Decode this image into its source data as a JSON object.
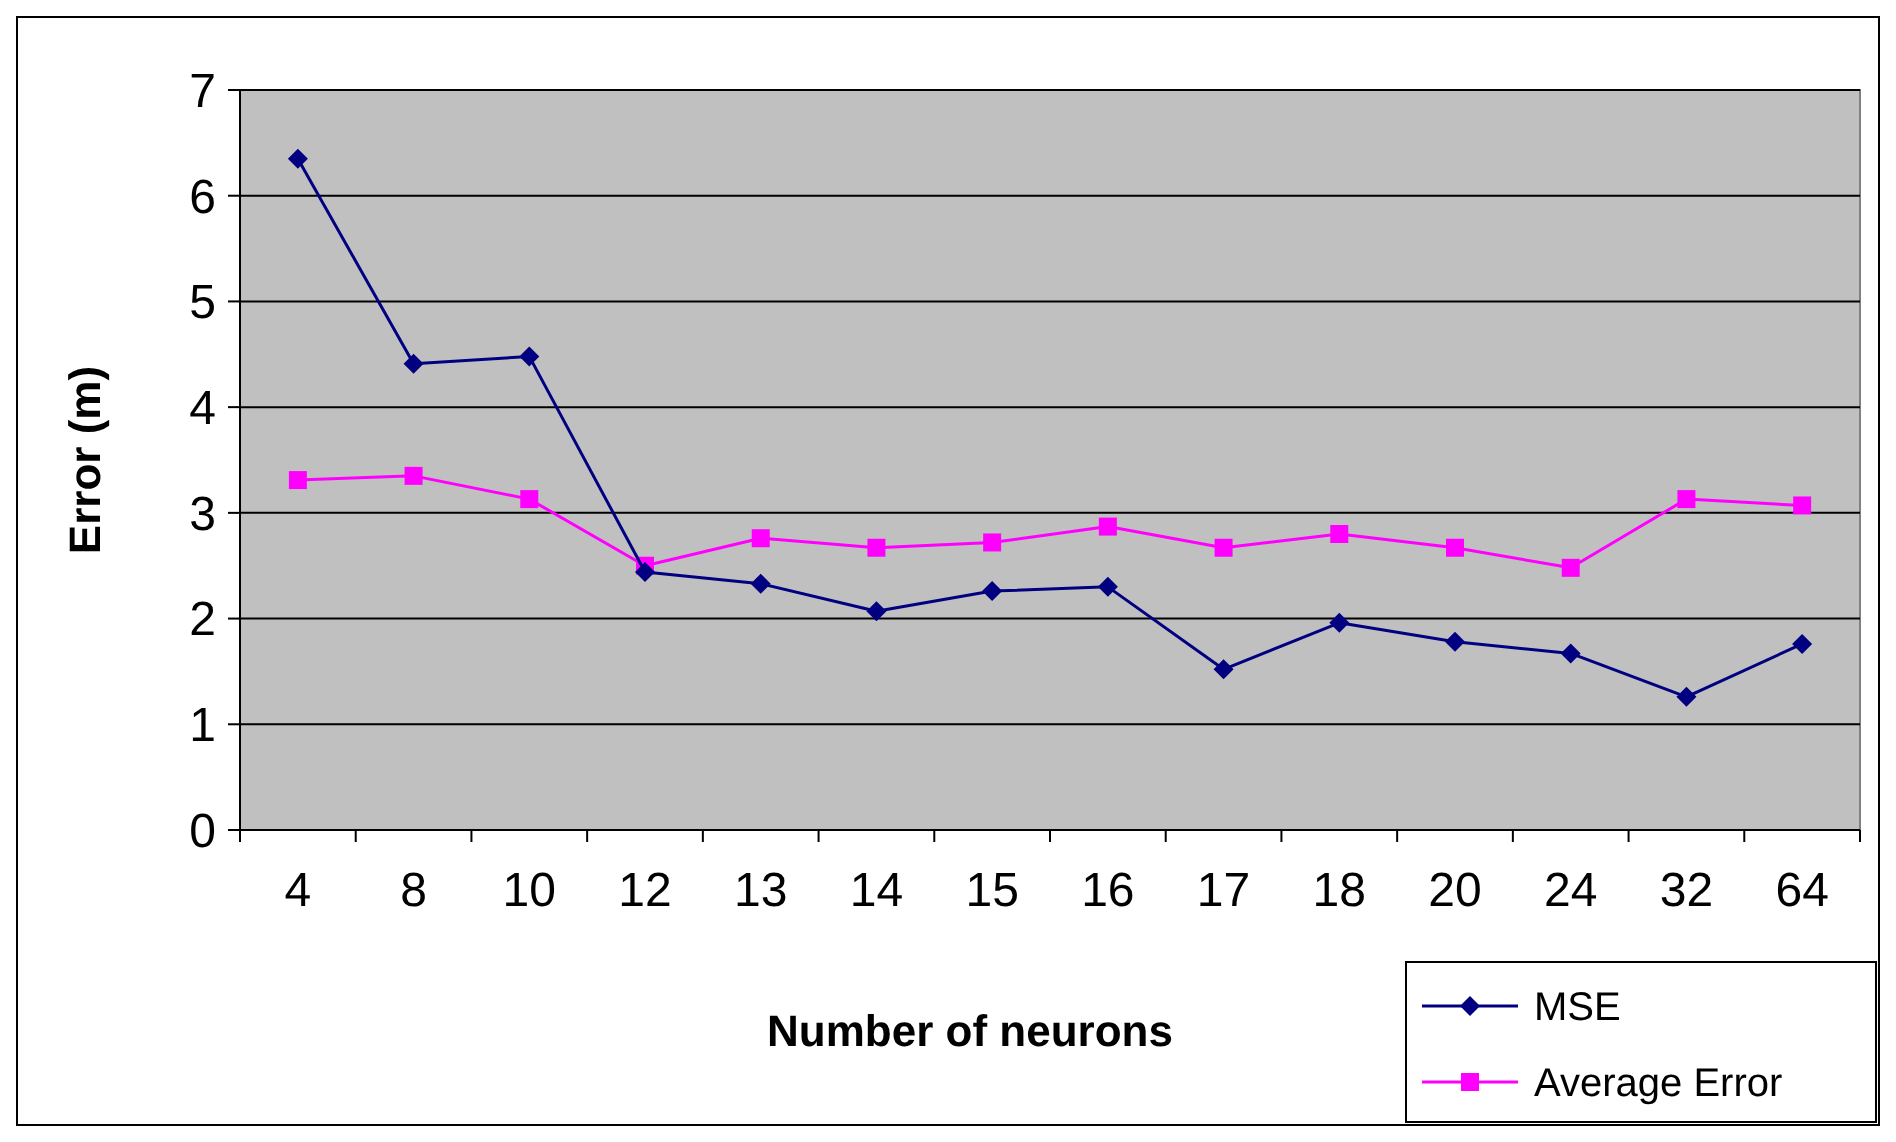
{
  "chart_data": {
    "type": "line",
    "xlabel": "Number of neurons",
    "ylabel": "Error (m)",
    "categories": [
      "4",
      "8",
      "10",
      "12",
      "13",
      "14",
      "15",
      "16",
      "17",
      "18",
      "20",
      "24",
      "32",
      "64"
    ],
    "ylim": [
      0,
      7
    ],
    "yticks": [
      0,
      1,
      2,
      3,
      4,
      5,
      6,
      7
    ],
    "grid": "y",
    "legend": "bottom right",
    "line_style": "solid",
    "series": [
      {
        "name": "MSE",
        "color": "#000080",
        "marker": "diamond",
        "values": [
          6.35,
          4.41,
          4.48,
          2.44,
          2.33,
          2.07,
          2.26,
          2.3,
          1.52,
          1.96,
          1.78,
          1.67,
          1.26,
          1.76
        ]
      },
      {
        "name": "Average Error",
        "color": "#ff00ff",
        "marker": "square",
        "values": [
          3.31,
          3.35,
          3.13,
          2.5,
          2.76,
          2.67,
          2.72,
          2.87,
          2.67,
          2.8,
          2.67,
          2.48,
          3.13,
          3.07
        ]
      }
    ]
  }
}
